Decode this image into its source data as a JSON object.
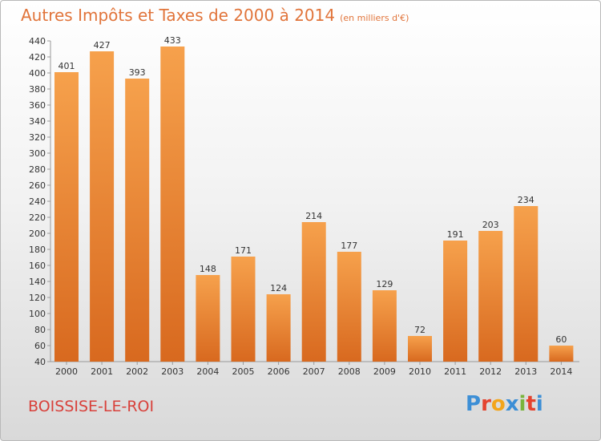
{
  "title": "Autres Impôts et Taxes de 2000 à 2014",
  "unit": "(en milliers d'€)",
  "commune": "BOISSISE-LE-ROI",
  "logo": [
    "P",
    "r",
    "o",
    "x",
    "i",
    "t",
    "i"
  ],
  "colors": {
    "bar_light": "#f6a14c",
    "bar_dark": "#d8691f",
    "title": "#e1743a",
    "commune": "#d8413b",
    "logo": [
      "#3d8fd6",
      "#e4432f",
      "#f3a51b",
      "#3d8fd6",
      "#7ab43c",
      "#e4432f",
      "#3d8fd6"
    ]
  },
  "chart_data": {
    "type": "bar",
    "title": "Autres Impôts et Taxes de 2000 à 2014",
    "subtitle": "(en milliers d'€)",
    "categories": [
      "2000",
      "2001",
      "2002",
      "2003",
      "2004",
      "2005",
      "2006",
      "2007",
      "2008",
      "2009",
      "2010",
      "2011",
      "2012",
      "2013",
      "2014"
    ],
    "values": [
      401,
      427,
      393,
      433,
      148,
      171,
      124,
      214,
      177,
      129,
      72,
      191,
      203,
      234,
      60
    ],
    "ylim": [
      40,
      440
    ],
    "yticks": [
      40,
      60,
      80,
      100,
      120,
      140,
      160,
      180,
      200,
      220,
      240,
      260,
      280,
      300,
      320,
      340,
      360,
      380,
      400,
      420,
      440
    ],
    "grid": false,
    "legend": "none"
  }
}
